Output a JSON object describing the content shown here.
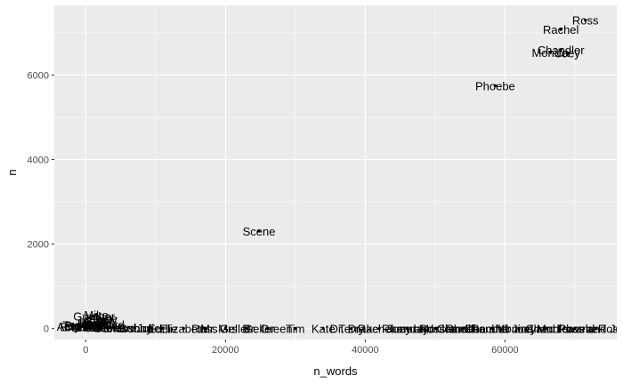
{
  "chart_data": {
    "type": "scatter",
    "xlabel": "n_words",
    "ylabel": "n",
    "xlim": [
      -4500,
      76000
    ],
    "ylim": [
      -260,
      7650
    ],
    "x_ticks": [
      0,
      20000,
      40000,
      60000
    ],
    "y_ticks": [
      0,
      2000,
      4000,
      6000
    ],
    "x_tick_labels": [
      "0",
      "20000",
      "40000",
      "60000"
    ],
    "y_tick_labels": [
      "0",
      "2000",
      "4000",
      "6000"
    ],
    "grid": true,
    "background": "#ebebeb",
    "grid_color": "#ffffff",
    "point_color": "#000000",
    "points": [
      {
        "label": "Ross",
        "x": 71500,
        "y": 7300
      },
      {
        "label": "Rachel",
        "x": 68000,
        "y": 7080
      },
      {
        "label": "Chandler",
        "x": 68000,
        "y": 6600
      },
      {
        "label": "Monica",
        "x": 66500,
        "y": 6540
      },
      {
        "label": "Joey",
        "x": 69000,
        "y": 6520
      },
      {
        "label": "Phoebe",
        "x": 58600,
        "y": 5750
      },
      {
        "label": "Scene",
        "x": 24800,
        "y": 2310
      },
      {
        "label": "Mike",
        "x": 1500,
        "y": 330
      },
      {
        "label": "Gunther",
        "x": 1200,
        "y": 300
      },
      {
        "label": "Janice",
        "x": 2100,
        "y": 250
      },
      {
        "label": "Emily",
        "x": 2500,
        "y": 220
      },
      {
        "label": "Carol",
        "x": 1800,
        "y": 190
      },
      {
        "label": "Ben",
        "x": 500,
        "y": 150
      },
      {
        "label": "Susan",
        "x": 1900,
        "y": 130
      },
      {
        "label": "Judy",
        "x": 1100,
        "y": 120
      },
      {
        "label": "Frank",
        "x": 900,
        "y": 110
      },
      {
        "label": "Kathy",
        "x": 1600,
        "y": 100
      },
      {
        "label": "Richard",
        "x": 2700,
        "y": 95
      },
      {
        "label": "Jack",
        "x": 1300,
        "y": 90
      },
      {
        "label": "Mona",
        "x": 1700,
        "y": 80
      },
      {
        "label": "Tag",
        "x": -2000,
        "y": 85
      },
      {
        "label": "Amy",
        "x": -2500,
        "y": 60
      },
      {
        "label": "Barry",
        "x": -1000,
        "y": 75
      },
      {
        "label": "Paul",
        "x": 400,
        "y": 60
      },
      {
        "label": "Charlie",
        "x": -500,
        "y": 50
      },
      {
        "label": "Erica",
        "x": -1800,
        "y": 40
      },
      {
        "label": "Ursula",
        "x": 200,
        "y": 35
      },
      {
        "label": "Estelle",
        "x": 3000,
        "y": 30
      },
      {
        "label": "Pete",
        "x": 3500,
        "y": 25
      },
      {
        "label": "Leonard",
        "x": 4200,
        "y": 20
      },
      {
        "label": "Fun Bobby",
        "x": 5500,
        "y": 15
      },
      {
        "label": "Joshua",
        "x": 7000,
        "y": 12
      },
      {
        "label": "Julie",
        "x": 9000,
        "y": 10
      },
      {
        "label": "Eddie",
        "x": 11000,
        "y": 8
      },
      {
        "label": "Elizabeth",
        "x": 14000,
        "y": 6
      },
      {
        "label": "Russ",
        "x": 17000,
        "y": 5
      },
      {
        "label": "Mr. Geller",
        "x": 20000,
        "y": 4
      },
      {
        "label": "Mrs. Geller",
        "x": 23000,
        "y": 3
      },
      {
        "label": "Dr. Green",
        "x": 26000,
        "y": 3
      },
      {
        "label": "Tim",
        "x": 30000,
        "y": 2
      },
      {
        "label": "Kate",
        "x": 34000,
        "y": 2
      },
      {
        "label": "Terry",
        "x": 38000,
        "y": 2
      },
      {
        "label": "Dr. Drake Ramoray",
        "x": 42000,
        "y": 1
      },
      {
        "label": "Rachel and Monica",
        "x": 46000,
        "y": 1
      },
      {
        "label": "Joey and Chandler",
        "x": 50000,
        "y": 1
      },
      {
        "label": "Ross and Rachel",
        "x": 54000,
        "y": 1
      },
      {
        "label": "Phoebe and Joey",
        "x": 58000,
        "y": 1
      },
      {
        "label": "Chandler and Monica",
        "x": 62000,
        "y": 1
      },
      {
        "label": "Monica and Phoebe",
        "x": 66000,
        "y": 1
      },
      {
        "label": "Chandler and Ross",
        "x": 70000,
        "y": 1
      },
      {
        "label": "Ross and Joey",
        "x": 73000,
        "y": 1
      }
    ]
  }
}
